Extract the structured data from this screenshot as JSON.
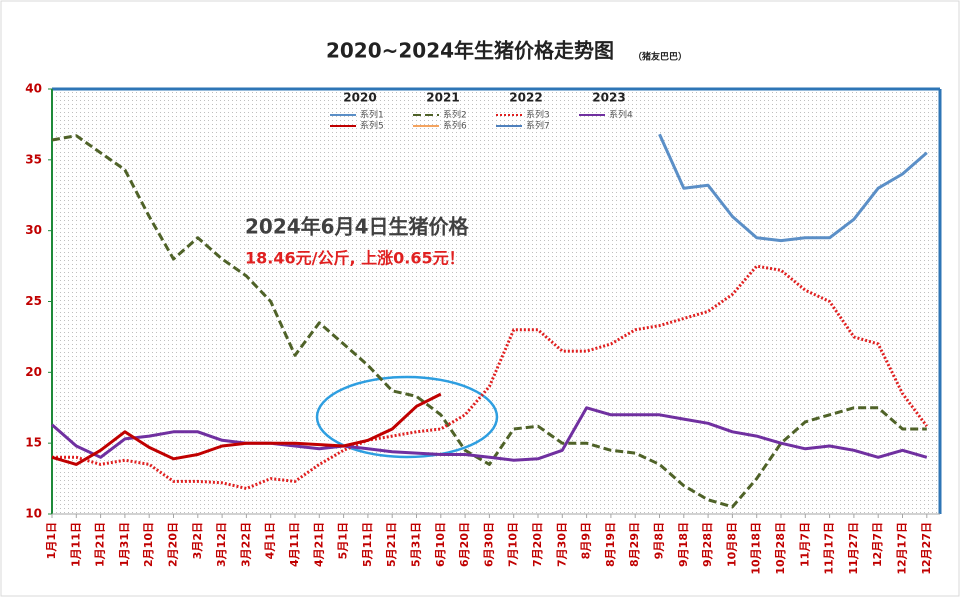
{
  "chart_data": {
    "type": "line",
    "title": "2020~2024年生猪价格走势图",
    "subtitle": "（猪友巴巴）",
    "annotation": "2024年6月4日生猪价格",
    "annotation_detail": "18.46元/公斤, 上涨0.65元！",
    "legend_years": [
      "2020",
      "2021",
      "2022",
      "2023"
    ],
    "categories": [
      "1月1日",
      "1月11日",
      "1月21日",
      "1月31日",
      "2月10日",
      "2月20日",
      "3月2日",
      "3月12日",
      "3月22日",
      "4月1日",
      "4月11日",
      "4月21日",
      "5月1日",
      "5月11日",
      "5月21日",
      "5月31日",
      "6月10日",
      "6月20日",
      "6月30日",
      "7月10日",
      "7月20日",
      "7月30日",
      "8月9日",
      "8月19日",
      "8月29日",
      "9月8日",
      "9月18日",
      "9月28日",
      "10月8日",
      "10月18日",
      "10月28日",
      "11月7日",
      "11月17日",
      "11月27日",
      "12月7日",
      "12月17日",
      "12月27日"
    ],
    "ylim": [
      10,
      40
    ],
    "yticks": [
      10,
      15,
      20,
      25,
      30,
      35,
      40
    ],
    "series": [
      {
        "name": "系列1",
        "color": "#5b8fc7",
        "style": "solid",
        "values": [
          null,
          null,
          null,
          null,
          null,
          null,
          null,
          null,
          null,
          null,
          null,
          null,
          null,
          null,
          null,
          null,
          null,
          null,
          null,
          null,
          null,
          null,
          null,
          null,
          null,
          36.8,
          33,
          33.2,
          31,
          29.5,
          29.3,
          29.5,
          29.5,
          30.8,
          33,
          34,
          35.5
        ]
      },
      {
        "name": "系列2",
        "color": "#4f6228",
        "style": "dashed",
        "values": [
          36.4,
          36.7,
          35.5,
          34.3,
          31,
          28,
          29.5,
          28,
          26.8,
          25,
          21.2,
          23.5,
          22,
          20.5,
          18.7,
          18.3,
          17,
          14.5,
          13.5,
          16,
          16.2,
          15,
          15,
          14.5,
          14.3,
          13.5,
          12,
          11,
          10.5,
          12.5,
          15,
          16.5,
          17,
          17.5,
          17.5,
          16,
          16
        ]
      },
      {
        "name": "系列3",
        "color": "#e02020",
        "style": "dotted",
        "values": [
          14,
          14,
          13.5,
          13.8,
          13.5,
          12.3,
          12.3,
          12.2,
          11.8,
          12.5,
          12.3,
          13.5,
          14.5,
          15.2,
          15.5,
          15.8,
          16,
          17,
          19,
          23,
          23,
          21.5,
          21.5,
          22,
          23,
          23.3,
          23.8,
          24.3,
          25.5,
          27.5,
          27.2,
          25.8,
          25,
          22.5,
          22,
          18.5,
          16.2
        ]
      },
      {
        "name": "系列4",
        "color": "#7030a0",
        "style": "solid",
        "values": [
          16.3,
          14.8,
          14,
          15.3,
          15.5,
          15.8,
          15.8,
          15.2,
          15,
          15,
          14.8,
          14.6,
          14.8,
          14.6,
          14.4,
          14.3,
          14.2,
          14.2,
          14,
          13.8,
          13.9,
          14.5,
          17.5,
          17,
          17,
          17,
          16.7,
          16.4,
          15.8,
          15.5,
          15,
          14.6,
          14.8,
          14.5,
          14,
          14.5,
          14
        ]
      },
      {
        "name": "系列5",
        "color": "#c00000",
        "style": "solid",
        "values": [
          14,
          13.5,
          14.5,
          15.8,
          14.7,
          13.9,
          14.2,
          14.8,
          15,
          15,
          15,
          14.9,
          14.8,
          15.2,
          16,
          17.6,
          18.46,
          null,
          null,
          null,
          null,
          null,
          null,
          null,
          null,
          null,
          null,
          null,
          null,
          null,
          null,
          null,
          null,
          null,
          null,
          null,
          null
        ]
      },
      {
        "name": "系列6",
        "color": "#f4a460",
        "style": "solid",
        "values": [
          null,
          null,
          null,
          null,
          null,
          null,
          null,
          null,
          null,
          null,
          null,
          null,
          null,
          null,
          null,
          null,
          null,
          null,
          null,
          null,
          null,
          null,
          null,
          null,
          null,
          null,
          null,
          null,
          null,
          null,
          null,
          null,
          null,
          null,
          null,
          null,
          null
        ]
      },
      {
        "name": "系列7",
        "color": "#4f81bd",
        "style": "solid",
        "values": [
          null,
          null,
          null,
          null,
          null,
          null,
          null,
          null,
          null,
          null,
          null,
          null,
          null,
          null,
          null,
          null,
          null,
          null,
          null,
          null,
          null,
          null,
          null,
          null,
          null,
          null,
          null,
          null,
          null,
          null,
          null,
          null,
          null,
          null,
          null,
          null,
          null
        ]
      }
    ]
  }
}
